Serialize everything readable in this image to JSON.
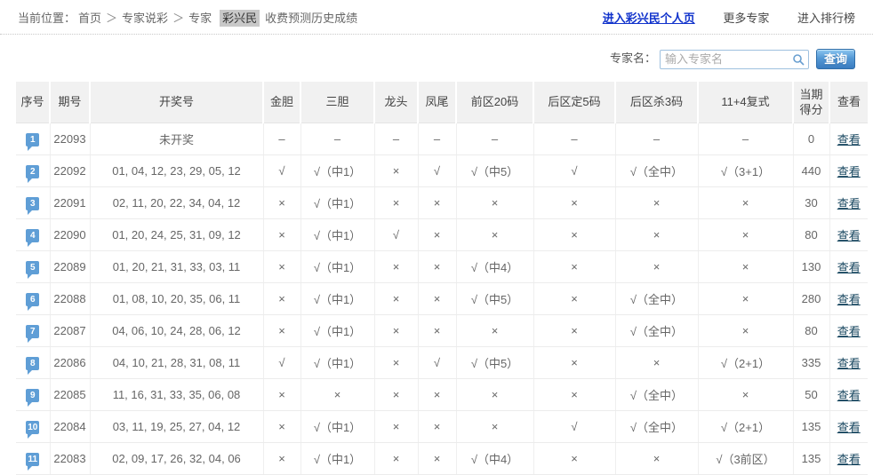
{
  "breadcrumb": {
    "prefix": "当前位置：",
    "links": [
      "首页",
      "专家说彩",
      "专家"
    ],
    "separator": "＞",
    "expert": "彩兴民",
    "suffix": "收费预测历史成绩"
  },
  "top_links": {
    "profile": "进入彩兴民个人页",
    "more_experts": "更多专家",
    "ranking": "进入排行榜"
  },
  "search": {
    "label": "专家名：",
    "placeholder": "输入专家名",
    "icon": "magnifier-icon",
    "button_label": "查询"
  },
  "table": {
    "headers": [
      "序号",
      "期号",
      "开奖号",
      "金胆",
      "三胆",
      "龙头",
      "凤尾",
      "前区20码",
      "后区定5码",
      "后区杀3码",
      "11+4复式",
      "当期得分",
      "查看"
    ],
    "result_keys": [
      "golden-dan",
      "three-dan",
      "dragon-head",
      "phoenix-tail",
      "front-20",
      "back-fix5",
      "back-kill3",
      "compound-11-4"
    ],
    "view_label": "查看",
    "rows": [
      {
        "no": "1",
        "issue": "22093",
        "draw": "未开奖",
        "results": [
          "–",
          "–",
          "–",
          "–",
          "–",
          "–",
          "–",
          "–"
        ],
        "score": "0"
      },
      {
        "no": "2",
        "issue": "22092",
        "draw": "01, 04, 12, 23, 29, 05, 12",
        "results": [
          "√",
          "√（中1）",
          "×",
          "√",
          "√（中5）",
          "√",
          "√（全中）",
          "√（3+1）"
        ],
        "score": "440"
      },
      {
        "no": "3",
        "issue": "22091",
        "draw": "02, 11, 20, 22, 34, 04, 12",
        "results": [
          "×",
          "√（中1）",
          "×",
          "×",
          "×",
          "×",
          "×",
          "×"
        ],
        "score": "30"
      },
      {
        "no": "4",
        "issue": "22090",
        "draw": "01, 20, 24, 25, 31, 09, 12",
        "results": [
          "×",
          "√（中1）",
          "√",
          "×",
          "×",
          "×",
          "×",
          "×"
        ],
        "score": "80"
      },
      {
        "no": "5",
        "issue": "22089",
        "draw": "01, 20, 21, 31, 33, 03, 11",
        "results": [
          "×",
          "√（中1）",
          "×",
          "×",
          "√（中4）",
          "×",
          "×",
          "×"
        ],
        "score": "130"
      },
      {
        "no": "6",
        "issue": "22088",
        "draw": "01, 08, 10, 20, 35, 06, 11",
        "results": [
          "×",
          "√（中1）",
          "×",
          "×",
          "√（中5）",
          "×",
          "√（全中）",
          "×"
        ],
        "score": "280"
      },
      {
        "no": "7",
        "issue": "22087",
        "draw": "04, 06, 10, 24, 28, 06, 12",
        "results": [
          "×",
          "√（中1）",
          "×",
          "×",
          "×",
          "×",
          "√（全中）",
          "×"
        ],
        "score": "80"
      },
      {
        "no": "8",
        "issue": "22086",
        "draw": "04, 10, 21, 28, 31, 08, 11",
        "results": [
          "√",
          "√（中1）",
          "×",
          "√",
          "√（中5）",
          "×",
          "×",
          "√（2+1）"
        ],
        "score": "335"
      },
      {
        "no": "9",
        "issue": "22085",
        "draw": "11, 16, 31, 33, 35, 06, 08",
        "results": [
          "×",
          "×",
          "×",
          "×",
          "×",
          "×",
          "√（全中）",
          "×"
        ],
        "score": "50"
      },
      {
        "no": "10",
        "issue": "22084",
        "draw": "03, 11, 19, 25, 27, 04, 12",
        "results": [
          "×",
          "√（中1）",
          "×",
          "×",
          "×",
          "√",
          "√（全中）",
          "√（2+1）"
        ],
        "score": "135"
      },
      {
        "no": "11",
        "issue": "22083",
        "draw": "02, 09, 17, 26, 32, 04, 06",
        "results": [
          "×",
          "√（中1）",
          "×",
          "×",
          "√（中4）",
          "×",
          "×",
          "√（3前区）"
        ],
        "score": "135"
      }
    ]
  },
  "colors": {
    "hit_red": "#e0483c",
    "miss_gray": "#9f9f9f",
    "badge_blue": "#5f9ed6",
    "link_blue": "#1133cc",
    "view_link": "#17465f",
    "button_blue": "#3a7cc0",
    "header_bg": "#f1f1f1"
  }
}
